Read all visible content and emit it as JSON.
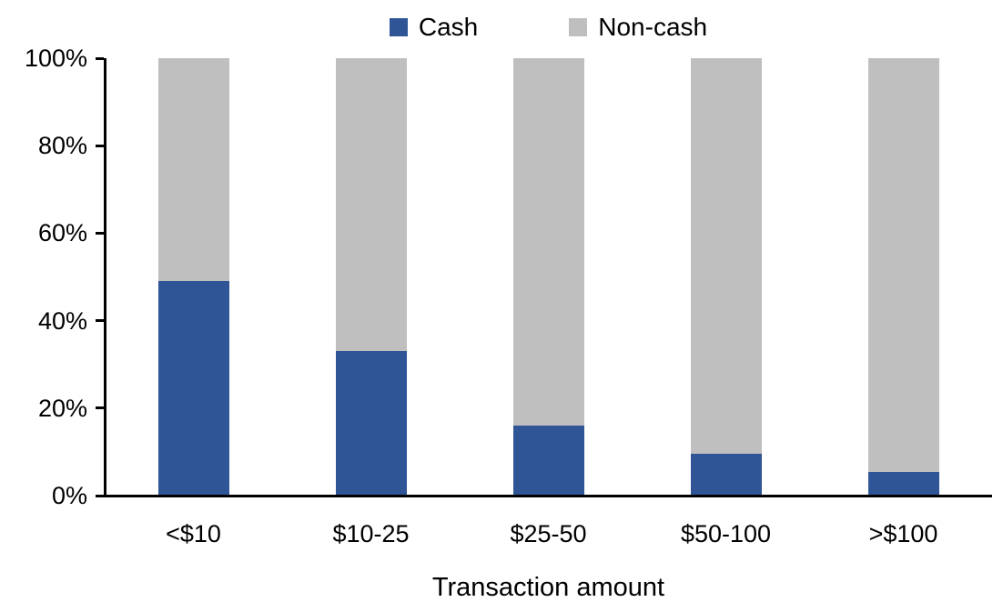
{
  "chart_data": {
    "type": "bar",
    "subtype": "stacked-100-percent-column",
    "categories": [
      "<$10",
      "$10-25",
      "$25-50",
      "$50-100",
      ">$100"
    ],
    "series": [
      {
        "name": "Cash",
        "color": "#2F5597",
        "values": [
          49,
          33,
          16,
          9.5,
          5.5
        ]
      },
      {
        "name": "Non-cash",
        "color": "#BFBFBF",
        "values": [
          51,
          67,
          84,
          90.5,
          94.5
        ]
      }
    ],
    "xlabel": "Transaction amount",
    "y_ticks": [
      "0%",
      "20%",
      "40%",
      "60%",
      "80%",
      "100%"
    ],
    "ylim": [
      0,
      100
    ],
    "legend_position": "top",
    "grid": false,
    "axis_color": "#000000",
    "background_color": "#FFFFFF"
  }
}
